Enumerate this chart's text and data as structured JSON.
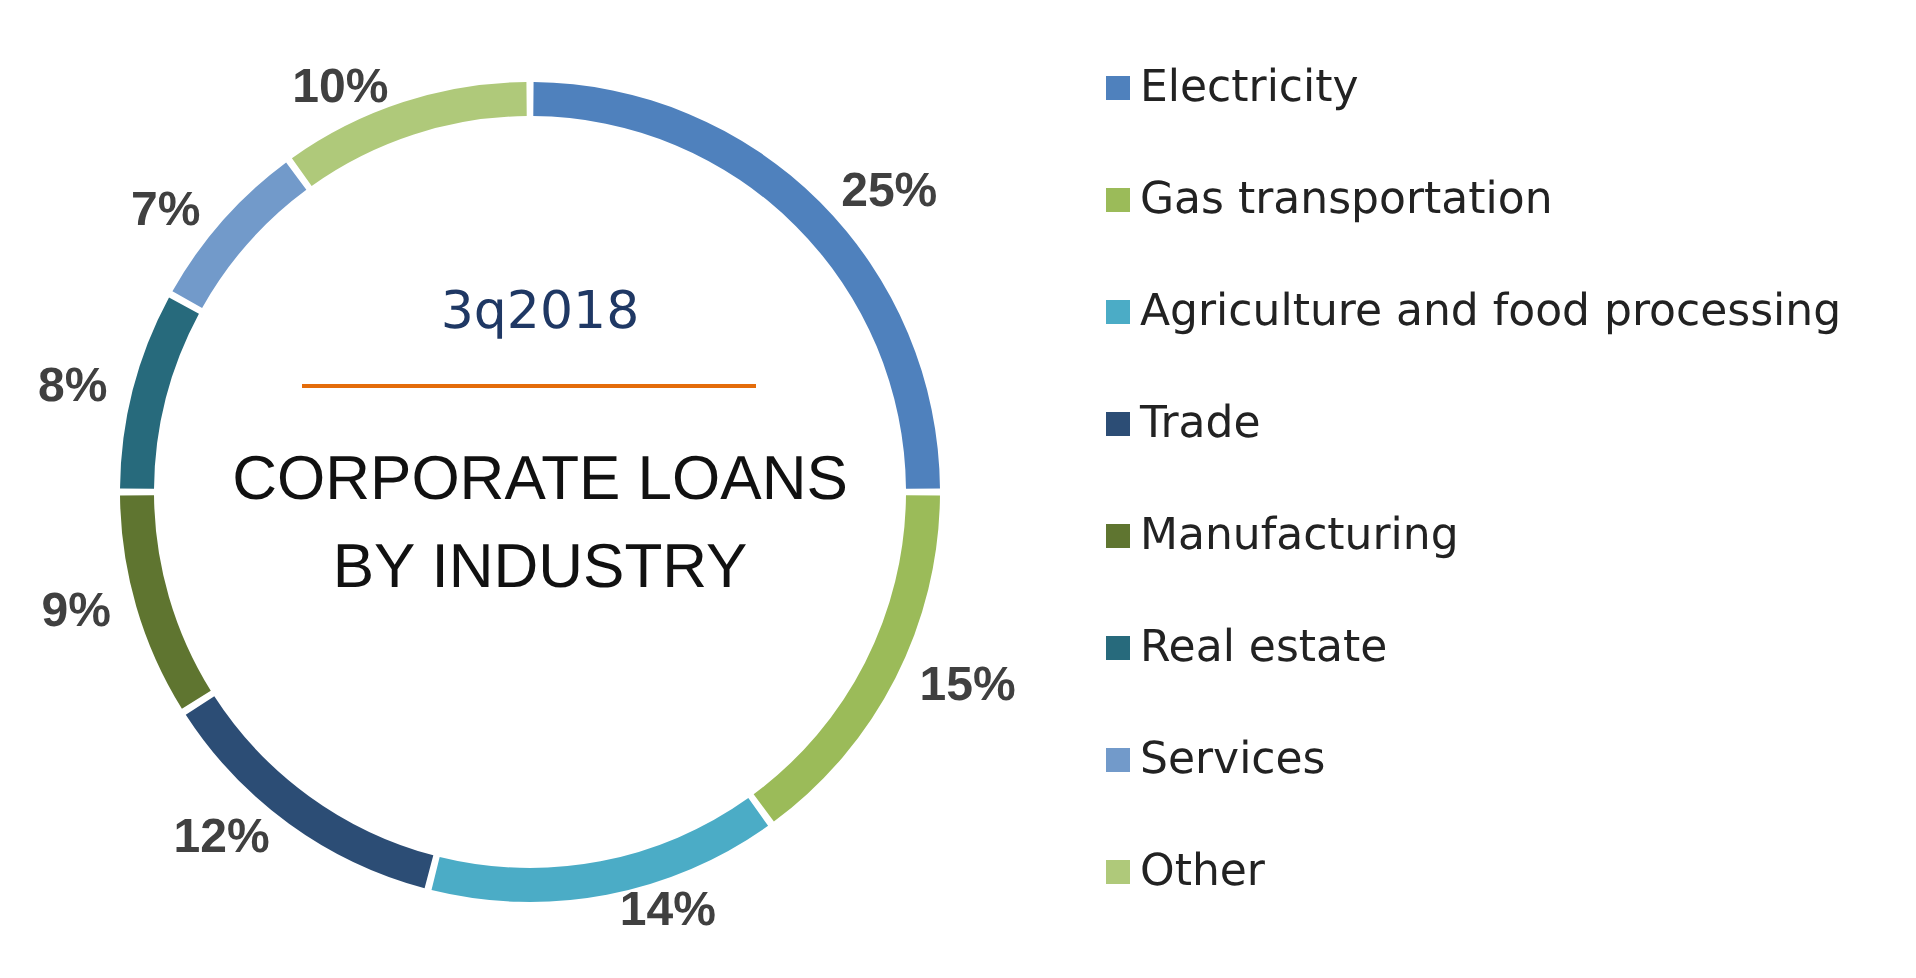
{
  "chart_data": {
    "type": "donut",
    "title": "CORPORATE LOANS\nBY INDUSTRY",
    "subtitle": "3q2018",
    "categories": [
      "Electricity",
      "Gas transportation",
      "Agriculture and food processing",
      "Trade",
      "Manufacturing",
      "Real estate",
      "Services",
      "Other"
    ],
    "values": [
      25,
      15,
      14,
      12,
      9,
      8,
      7,
      10
    ],
    "value_labels": [
      "25%",
      "15%",
      "14%",
      "12%",
      "9%",
      "8%",
      "7%",
      "10%"
    ],
    "colors": [
      "#4f81bd",
      "#9bbb59",
      "#4bacc6",
      "#2c4d75",
      "#5f7530",
      "#276a7c",
      "#729aca",
      "#afc97a"
    ],
    "legend": "right"
  }
}
